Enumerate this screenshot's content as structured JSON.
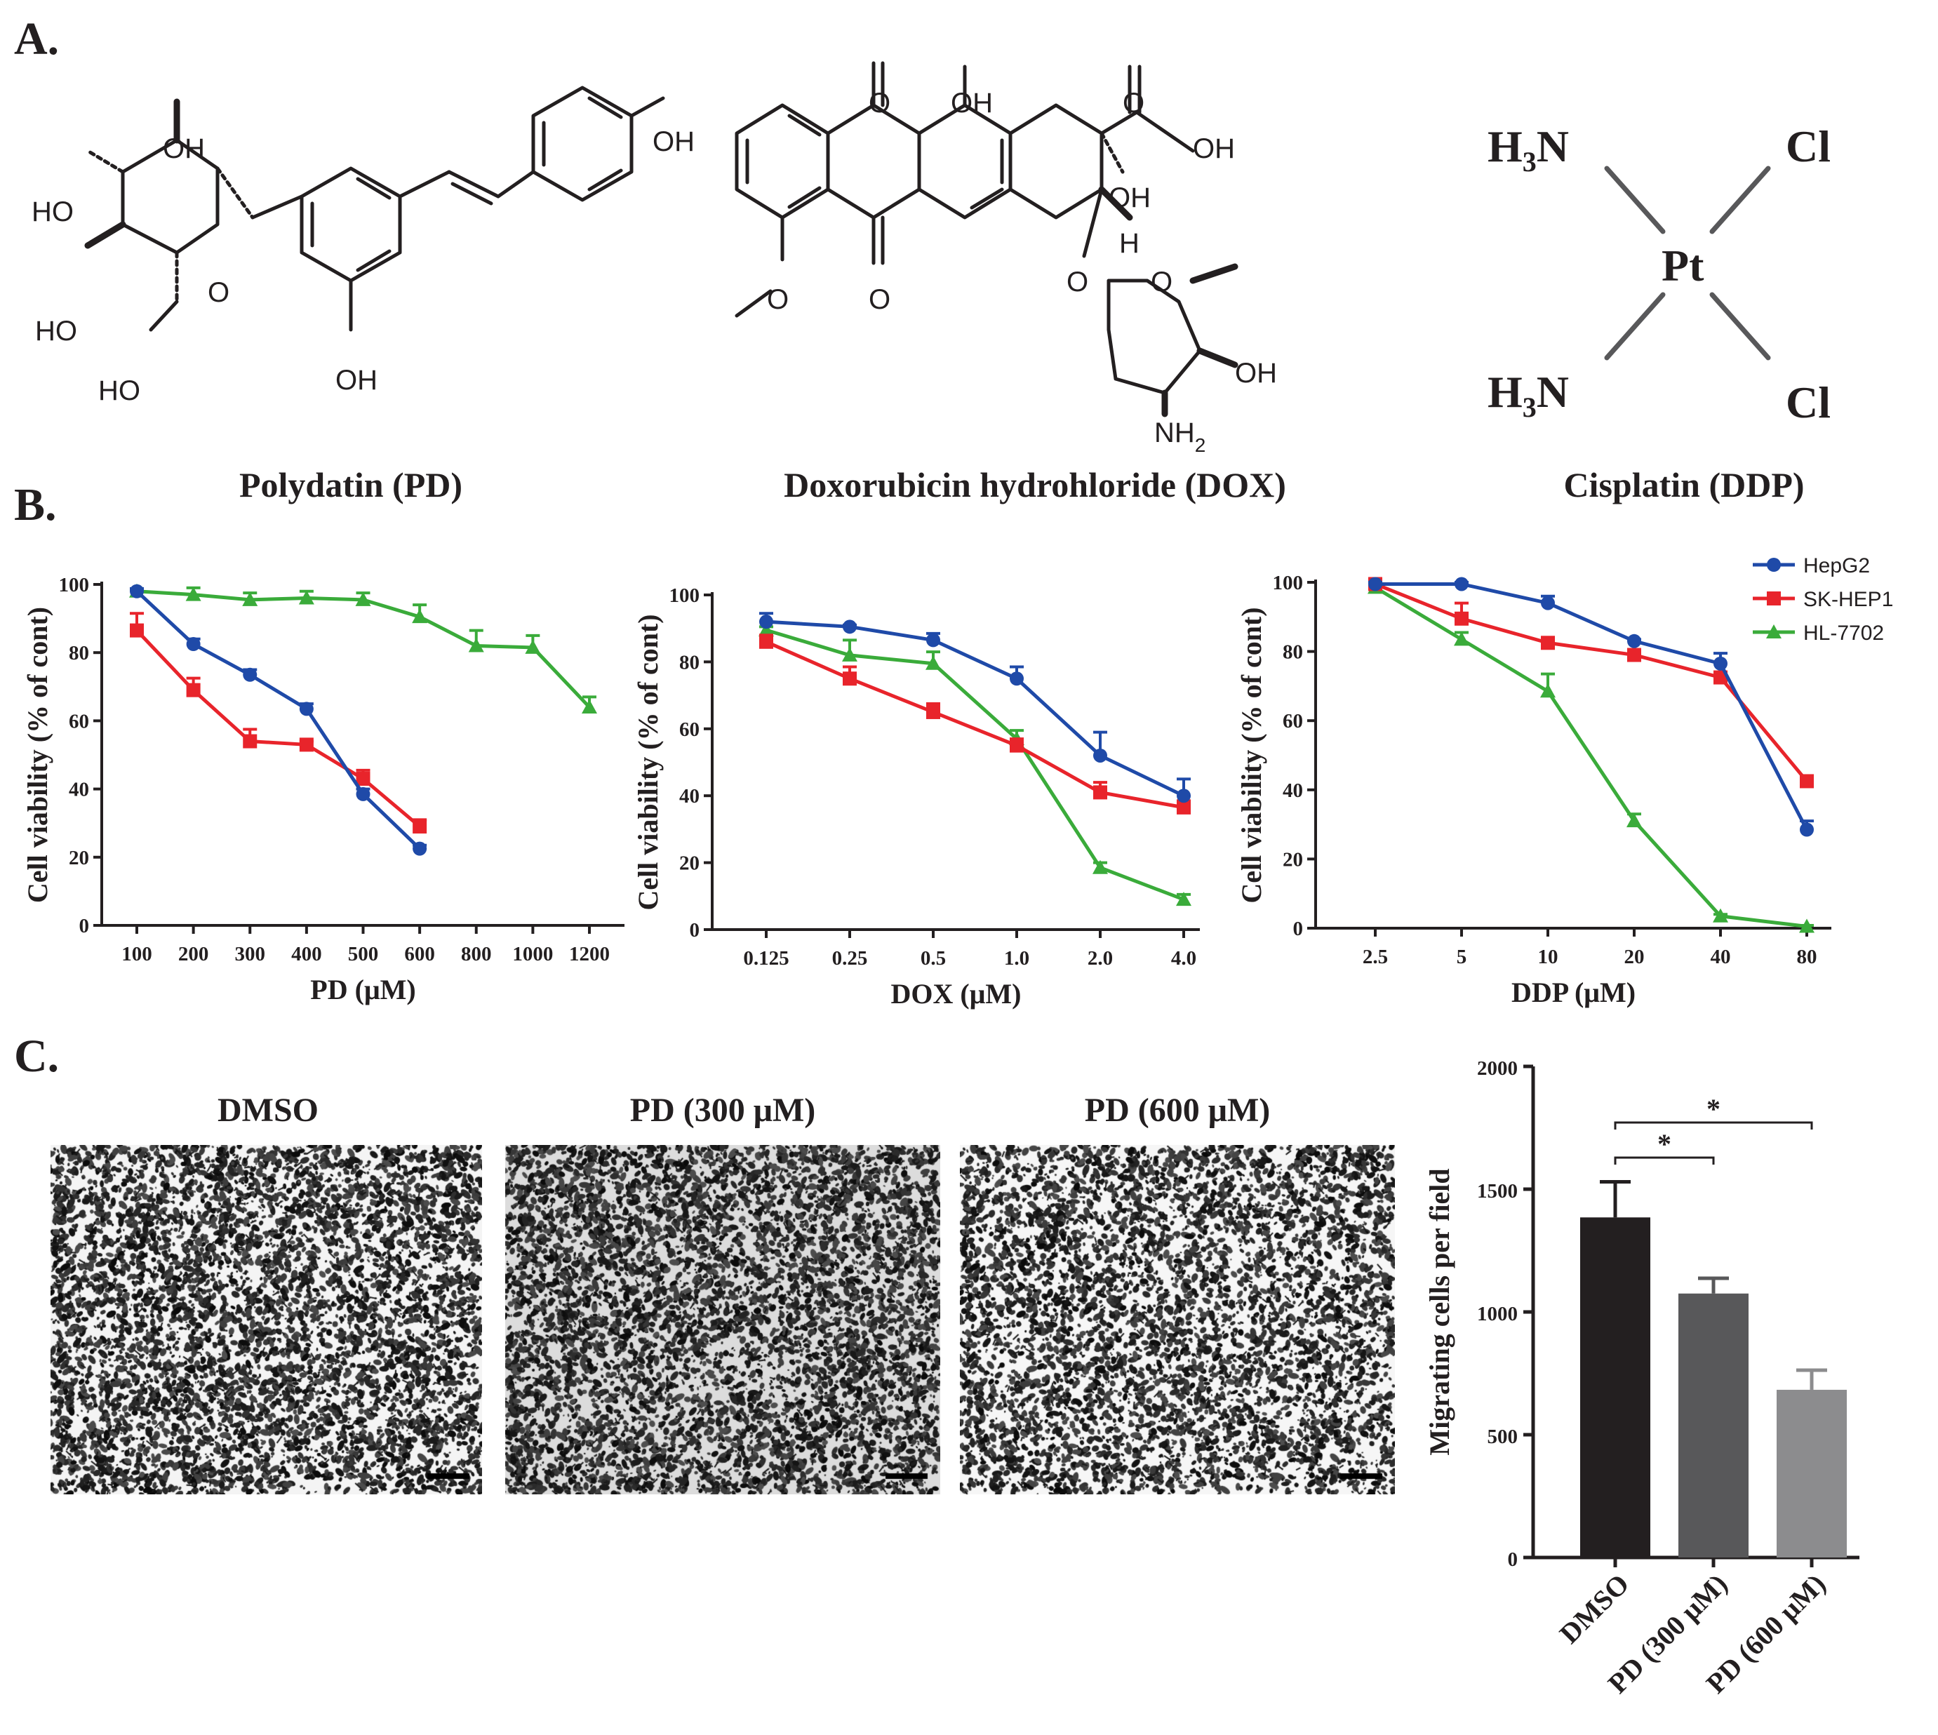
{
  "panels": {
    "a": "A.",
    "b": "B.",
    "c": "C."
  },
  "compounds": [
    {
      "name": "Polydatin (PD)"
    },
    {
      "name": "Doxorubicin hydrohloride (DOX)"
    },
    {
      "name": "Cisplatin (DDP)"
    }
  ],
  "structure_labels": {
    "pd": {
      "oh_top": "OH",
      "ho_left": "HO",
      "ho_mid": "HO",
      "ho_bottom": "HO",
      "oh_ring": "OH",
      "o_ring": "O",
      "oh_phenol": "OH"
    },
    "dox": {
      "o_top": "O",
      "oh_top": "OH",
      "o_bottom": "O",
      "o_methoxy": "O",
      "o_keto": "O",
      "oh_side": "OH",
      "oh_tert": "OH",
      "h": "H",
      "o_link": "O",
      "o_sugar": "O",
      "oh_sugar": "OH",
      "nh": "NH",
      "sub2": "2"
    },
    "ddp": {
      "h3n_top": "H",
      "sub3_top": "3",
      "n_top": "N",
      "cl_top": "Cl",
      "pt": "Pt",
      "h3n_bot": "H",
      "sub3_bot": "3",
      "n_bot": "N",
      "cl_bot": "Cl"
    }
  },
  "colors": {
    "HepG2": "#1f4aa8",
    "SK-HEP1": "#e8242b",
    "HL-7702": "#3aab3a",
    "bar_dmso": "#231f20",
    "bar_pd300": "#58585a",
    "bar_pd600": "#8c8c8e"
  },
  "chart_data": [
    {
      "type": "line",
      "x": [
        "100",
        "200",
        "300",
        "400",
        "500",
        "600",
        "800",
        "1000",
        "1200"
      ],
      "xlabel": "PD (μM)",
      "ylabel": "Cell viability (% of cont)",
      "ylim": [
        0,
        100
      ],
      "yticks": [
        "0",
        "20",
        "40",
        "60",
        "80",
        "100"
      ],
      "series": [
        {
          "name": "HepG2",
          "values": [
            98,
            82.5,
            73.5,
            63.5,
            38.5,
            22.5,
            null,
            null,
            null
          ],
          "err": [
            0.8,
            1.5,
            1.5,
            1.5,
            1.5,
            1,
            null,
            null,
            null
          ]
        },
        {
          "name": "SK-HEP1",
          "values": [
            86.5,
            69,
            54,
            53,
            43,
            29,
            null,
            null,
            null
          ],
          "err": [
            5,
            3.5,
            3.5,
            1,
            2.5,
            2,
            null,
            null,
            null
          ]
        },
        {
          "name": "HL-7702",
          "values": [
            98,
            97,
            95.5,
            96,
            95.5,
            90.5,
            82,
            81.5,
            64
          ],
          "err": [
            0.5,
            2,
            2,
            2,
            2,
            3.5,
            4.5,
            3.5,
            3
          ]
        }
      ]
    },
    {
      "type": "line",
      "x": [
        "0.125",
        "0.25",
        "0.5",
        "1.0",
        "2.0",
        "4.0"
      ],
      "xlabel": "DOX (μM)",
      "ylabel": "Cell viability (% of cont)",
      "ylim": [
        0,
        100
      ],
      "yticks": [
        "0",
        "20",
        "40",
        "60",
        "80",
        "100"
      ],
      "series": [
        {
          "name": "HepG2",
          "values": [
            92,
            90.5,
            86.5,
            75,
            52,
            40
          ],
          "err": [
            2.5,
            0.5,
            2,
            3.5,
            7,
            5
          ]
        },
        {
          "name": "SK-HEP1",
          "values": [
            86,
            75,
            65,
            55,
            41,
            36.5
          ],
          "err": [
            2,
            3.5,
            2.5,
            2,
            3,
            2
          ]
        },
        {
          "name": "HL-7702",
          "values": [
            89.5,
            82,
            79.5,
            57,
            18.5,
            9
          ],
          "err": [
            1,
            4.5,
            3.5,
            2.5,
            1.5,
            1.5
          ]
        }
      ]
    },
    {
      "type": "line",
      "x": [
        "2.5",
        "5",
        "10",
        "20",
        "40",
        "80"
      ],
      "xlabel": "DDP (μM)",
      "ylabel": "Cell viability (% of cont)",
      "ylim": [
        0,
        100
      ],
      "yticks": [
        "0",
        "20",
        "40",
        "60",
        "80",
        "100"
      ],
      "series": [
        {
          "name": "HepG2",
          "values": [
            99.5,
            99.5,
            94,
            83,
            76.5,
            28.5
          ],
          "err": [
            0.5,
            0.5,
            2,
            0.5,
            3,
            2.5
          ]
        },
        {
          "name": "SK-HEP1",
          "values": [
            99.5,
            89.5,
            82.5,
            79,
            72.5,
            42.5
          ],
          "err": [
            0.5,
            4.5,
            0.5,
            1,
            1,
            1
          ]
        },
        {
          "name": "HL-7702",
          "values": [
            98.5,
            83.5,
            68.5,
            31,
            3.5,
            0.5
          ],
          "err": [
            0.5,
            2,
            5,
            2,
            0.5,
            0.3
          ]
        }
      ]
    },
    {
      "type": "bar",
      "categories": [
        "DMSO",
        "PD (300 μM)",
        "PD (600 μM)"
      ],
      "values": [
        1385,
        1075,
        683
      ],
      "err": [
        145,
        62,
        80
      ],
      "ylabel": "Migrating cells per field",
      "ylim": [
        0,
        2000
      ],
      "yticks": [
        "0",
        "500",
        "1000",
        "1500",
        "2000"
      ],
      "significance": [
        {
          "from": 0,
          "to": 1,
          "label": "*"
        },
        {
          "from": 0,
          "to": 2,
          "label": "*"
        }
      ]
    }
  ],
  "legend": [
    "HepG2",
    "SK-HEP1",
    "HL-7702"
  ],
  "micrographs": [
    {
      "title": "DMSO",
      "density": 0.47
    },
    {
      "title": "PD (300 μM)",
      "density": 0.36
    },
    {
      "title": "PD (600 μM)",
      "density": 0.3
    }
  ]
}
